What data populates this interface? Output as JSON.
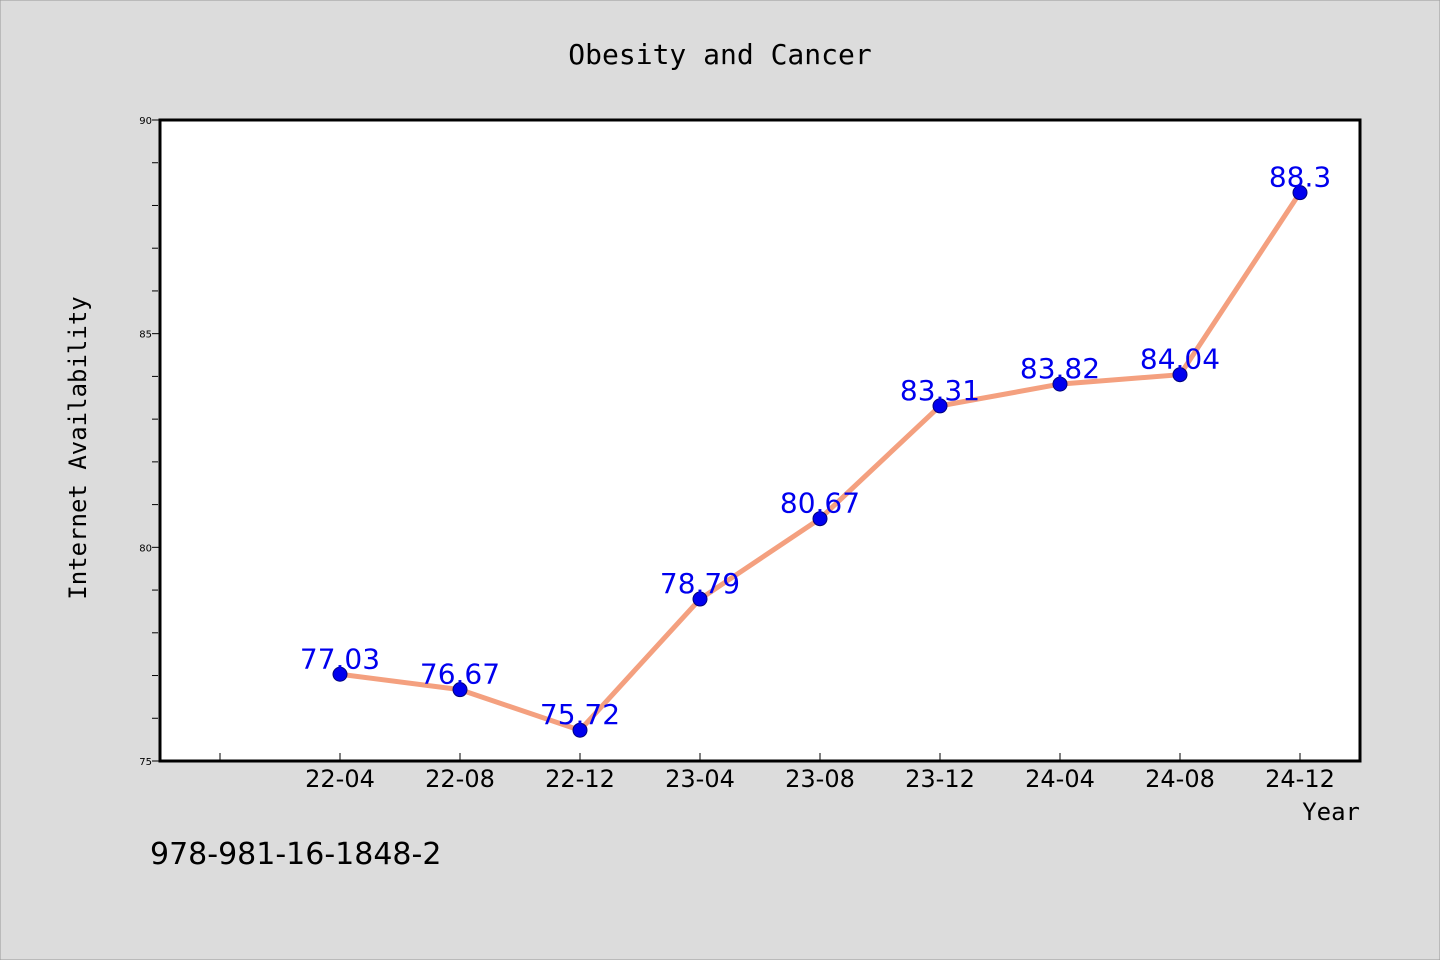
{
  "chart_data": {
    "type": "line",
    "title": "Obesity and Cancer",
    "xlabel": "Year",
    "ylabel": "Internet Availability",
    "categories": [
      "22-04",
      "22-08",
      "22-12",
      "23-04",
      "23-08",
      "23-12",
      "24-04",
      "24-08",
      "24-12"
    ],
    "values": [
      77.03,
      76.67,
      75.72,
      78.79,
      80.67,
      83.31,
      83.82,
      84.04,
      88.3
    ],
    "data_labels": [
      "77.03",
      "76.67",
      "75.72",
      "78.79",
      "80.67",
      "83.31",
      "83.82",
      "84.04",
      "88.3"
    ],
    "ylim": [
      75,
      90
    ],
    "yticks": [
      75,
      80,
      85,
      90
    ],
    "ytick_labels": [
      "75",
      "80",
      "85",
      "90"
    ],
    "grid": false,
    "legend": "none",
    "colors": {
      "line": "#f4a07f",
      "marker": "#0000ee",
      "label": "#0000ee",
      "background": "#dcdcdc",
      "plot_background": "#ffffff"
    }
  },
  "footer_text": "978-981-16-1848-2"
}
